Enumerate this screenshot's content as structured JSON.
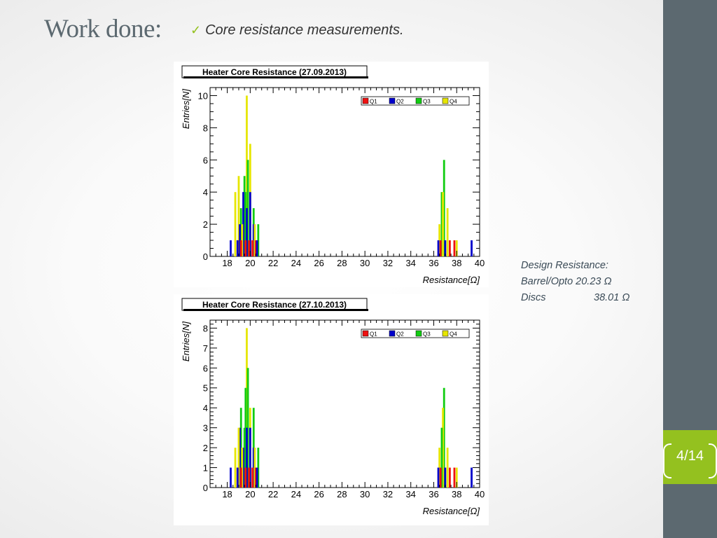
{
  "slide": {
    "title": "Work done:",
    "bullet": "Core resistance measurements.",
    "page_number": "4/14"
  },
  "design_note": {
    "heading": "Design Resistance:",
    "rows": [
      {
        "name": "Barrel/Opto",
        "value": "20.23 Ω"
      },
      {
        "name": "Discs",
        "value": "38.01 Ω"
      }
    ]
  },
  "colors": {
    "accent_green": "#94c11f",
    "band_gray": "#5c6970",
    "Q1": "#ee1111",
    "Q2": "#0000cc",
    "Q3": "#11cc11",
    "Q4": "#e6e600"
  },
  "chart_data": [
    {
      "type": "bar",
      "title": "Heater Core Resistance (27.09.2013)",
      "xlabel": "Resistance[Ω]",
      "ylabel": "Entries[N]",
      "xlim": [
        16.5,
        40
      ],
      "ylim": [
        0,
        10.5
      ],
      "xticks": [
        18,
        20,
        22,
        24,
        26,
        28,
        30,
        32,
        34,
        36,
        38,
        40
      ],
      "yticks": [
        0,
        2,
        4,
        6,
        8,
        10
      ],
      "legend": "top-right",
      "series": [
        {
          "name": "Q1",
          "x": [
            18.9,
            19.2,
            19.6,
            19.9,
            20.2,
            20.5,
            36.6,
            37.4,
            37.8
          ],
          "values": [
            1,
            1,
            1,
            1,
            1,
            1,
            1,
            1,
            1
          ]
        },
        {
          "name": "Q2",
          "x": [
            18.3,
            18.9,
            19.1,
            19.4,
            19.7,
            20.0,
            20.3,
            20.6,
            36.4,
            37.0,
            39.3
          ],
          "values": [
            1,
            1,
            2,
            4,
            3,
            4,
            2,
            1,
            1,
            1,
            1
          ]
        },
        {
          "name": "Q3",
          "x": [
            19.2,
            19.5,
            19.6,
            19.8,
            20.3,
            20.7,
            36.7,
            36.9
          ],
          "values": [
            3,
            5,
            4,
            6,
            3,
            2,
            4,
            6
          ]
        },
        {
          "name": "Q4",
          "x": [
            18.7,
            19.0,
            19.3,
            19.7,
            20.0,
            20.4,
            36.5,
            36.8,
            37.2,
            38.0
          ],
          "values": [
            4,
            5,
            2,
            10,
            7,
            2,
            2,
            4,
            3,
            1
          ]
        }
      ]
    },
    {
      "type": "bar",
      "title": "Heater Core Resistance (27.10.2013)",
      "xlabel": "Resistance[Ω]",
      "ylabel": "Entries[N]",
      "xlim": [
        16.5,
        40
      ],
      "ylim": [
        0,
        8.4
      ],
      "xticks": [
        18,
        20,
        22,
        24,
        26,
        28,
        30,
        32,
        34,
        36,
        38,
        40
      ],
      "yticks": [
        0,
        1,
        2,
        3,
        4,
        5,
        6,
        7,
        8
      ],
      "legend": "top-right",
      "series": [
        {
          "name": "Q1",
          "x": [
            18.9,
            19.2,
            19.6,
            19.9,
            20.2,
            20.5,
            36.6,
            37.4,
            37.8
          ],
          "values": [
            1,
            1,
            1,
            1,
            1,
            1,
            1,
            1,
            1
          ]
        },
        {
          "name": "Q2",
          "x": [
            18.3,
            18.9,
            19.1,
            19.4,
            19.7,
            20.0,
            20.3,
            20.6,
            36.4,
            37.0,
            39.3
          ],
          "values": [
            1,
            1,
            3,
            2,
            3,
            3,
            2,
            1,
            1,
            1,
            1
          ]
        },
        {
          "name": "Q3",
          "x": [
            19.2,
            19.5,
            19.6,
            19.8,
            20.3,
            20.7,
            36.7,
            36.9
          ],
          "values": [
            4,
            3,
            5,
            6,
            4,
            2,
            3,
            5
          ]
        },
        {
          "name": "Q4",
          "x": [
            18.7,
            19.0,
            19.3,
            19.7,
            20.0,
            20.4,
            36.5,
            36.8,
            37.2,
            38.0
          ],
          "values": [
            2,
            3,
            2,
            8,
            4,
            2,
            2,
            4,
            2,
            1
          ]
        }
      ]
    }
  ]
}
